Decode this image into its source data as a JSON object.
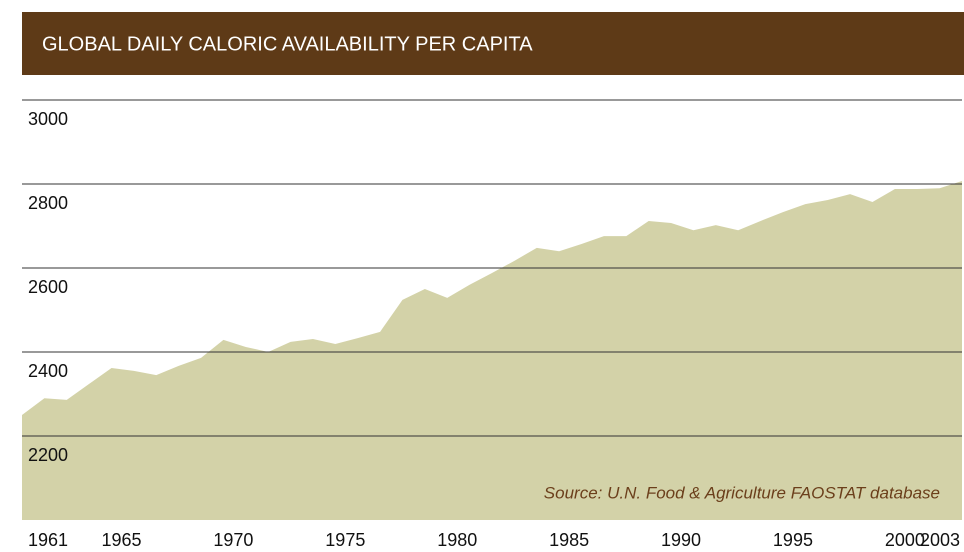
{
  "chart_data": {
    "type": "area",
    "title": "GLOBAL DAILY CALORIC AVAILABILITY PER CAPITA",
    "annotation": "Source: U.N. Food & Agriculture FAOSTAT database",
    "x": [
      1961,
      1962,
      1963,
      1964,
      1965,
      1966,
      1967,
      1968,
      1969,
      1970,
      1971,
      1972,
      1973,
      1974,
      1975,
      1976,
      1977,
      1978,
      1979,
      1980,
      1981,
      1982,
      1983,
      1984,
      1985,
      1986,
      1987,
      1988,
      1989,
      1990,
      1991,
      1992,
      1993,
      1994,
      1995,
      1996,
      1997,
      1998,
      1999,
      2000,
      2001,
      2002,
      2003
    ],
    "values": [
      2250,
      2290,
      2286,
      2324,
      2362,
      2355,
      2345,
      2367,
      2386,
      2429,
      2412,
      2400,
      2424,
      2431,
      2419,
      2433,
      2448,
      2524,
      2550,
      2529,
      2560,
      2588,
      2617,
      2648,
      2640,
      2657,
      2676,
      2676,
      2712,
      2707,
      2690,
      2702,
      2690,
      2712,
      2733,
      2752,
      2762,
      2776,
      2757,
      2788,
      2788,
      2790,
      2807
    ],
    "color": "#d3d2a8",
    "xlim": [
      1961,
      2003
    ],
    "xticks": [
      1961,
      1965,
      1970,
      1975,
      1980,
      1985,
      1990,
      1995,
      2000,
      2003
    ],
    "ylim": [
      2000,
      3000
    ],
    "yticks": [
      2200,
      2400,
      2600,
      2800,
      3000
    ],
    "grid": true
  }
}
